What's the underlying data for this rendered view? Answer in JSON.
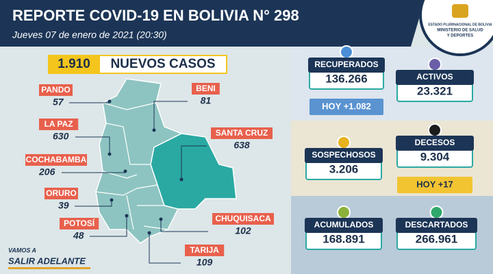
{
  "header": {
    "title": "REPORTE COVID-19 EN BOLIVIA N° 298",
    "subtitle": "Jueves 07 de enero de 2021 (20:30)",
    "ministry": [
      "ESTADO PLURINACIONAL DE BOLIVIA",
      "MINISTERIO DE SALUD",
      "Y DEPORTES"
    ]
  },
  "new_cases": {
    "value": "1.910",
    "label": "NUEVOS CASOS"
  },
  "departments": [
    {
      "name": "PANDO",
      "cases": "57"
    },
    {
      "name": "LA PAZ",
      "cases": "630"
    },
    {
      "name": "COCHABAMBA",
      "cases": "206"
    },
    {
      "name": "ORURO",
      "cases": "39"
    },
    {
      "name": "POTOSÍ",
      "cases": "48"
    },
    {
      "name": "BENI",
      "cases": "81"
    },
    {
      "name": "SANTA CRUZ",
      "cases": "638"
    },
    {
      "name": "CHUQUISACA",
      "cases": "102"
    },
    {
      "name": "TARIJA",
      "cases": "109"
    }
  ],
  "stats": {
    "recuperados": {
      "label": "RECUPERADOS",
      "value": "136.266",
      "today": "HOY +1.082"
    },
    "activos": {
      "label": "ACTIVOS",
      "value": "23.321"
    },
    "sospechosos": {
      "label": "SOSPECHOSOS",
      "value": "3.206"
    },
    "decesos": {
      "label": "DECESOS",
      "value": "9.304",
      "today": "HOY +17"
    },
    "acumulados": {
      "label": "ACUMULADOS",
      "value": "168.891"
    },
    "descartados": {
      "label": "DESCARTADOS",
      "value": "266.961"
    }
  },
  "slogan": [
    "VAMOS A",
    "SALIR ADELANTE"
  ]
}
